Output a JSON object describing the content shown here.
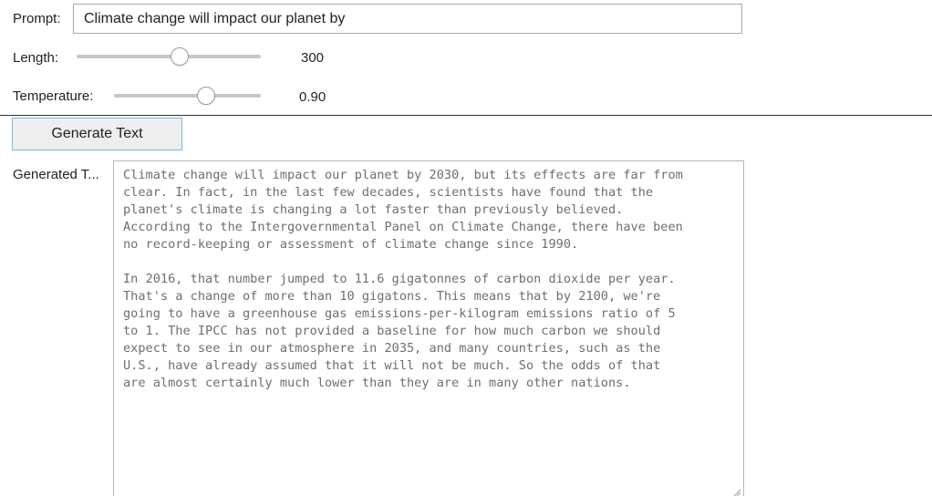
{
  "prompt": {
    "label": "Prompt:",
    "value": "Climate change will impact our planet by"
  },
  "length": {
    "label": "Length:",
    "value": "300",
    "slider_fraction": 0.56
  },
  "temperature": {
    "label": "Temperature:",
    "value": "0.90",
    "slider_fraction": 0.63
  },
  "generate_button": {
    "label": "Generate Text"
  },
  "output": {
    "label": "Generated T...",
    "text": "Climate change will impact our planet by 2030, but its effects are far from\nclear. In fact, in the last few decades, scientists have found that the\nplanet's climate is changing a lot faster than previously believed.\nAccording to the Intergovernmental Panel on Climate Change, there have been\nno record-keeping or assessment of climate change since 1990.\n\nIn 2016, that number jumped to 11.6 gigatonnes of carbon dioxide per year.\nThat's a change of more than 10 gigatons. This means that by 2100, we're\ngoing to have a greenhouse gas emissions-per-kilogram emissions ratio of 5\nto 1. The IPCC has not provided a baseline for how much carbon we should\nexpect to see in our atmosphere in 2035, and many countries, such as the\nU.S., have already assumed that it will not be much. So the odds of that\nare almost certainly much lower than they are in many other nations."
  },
  "colors": {
    "button_border": "#74b9e0",
    "button_bg": "#eeeeee",
    "output_text": "#6e6e6e",
    "slider_track": "#c6c6c6"
  },
  "icons": {
    "resize_grip": "resize-grip-icon"
  }
}
